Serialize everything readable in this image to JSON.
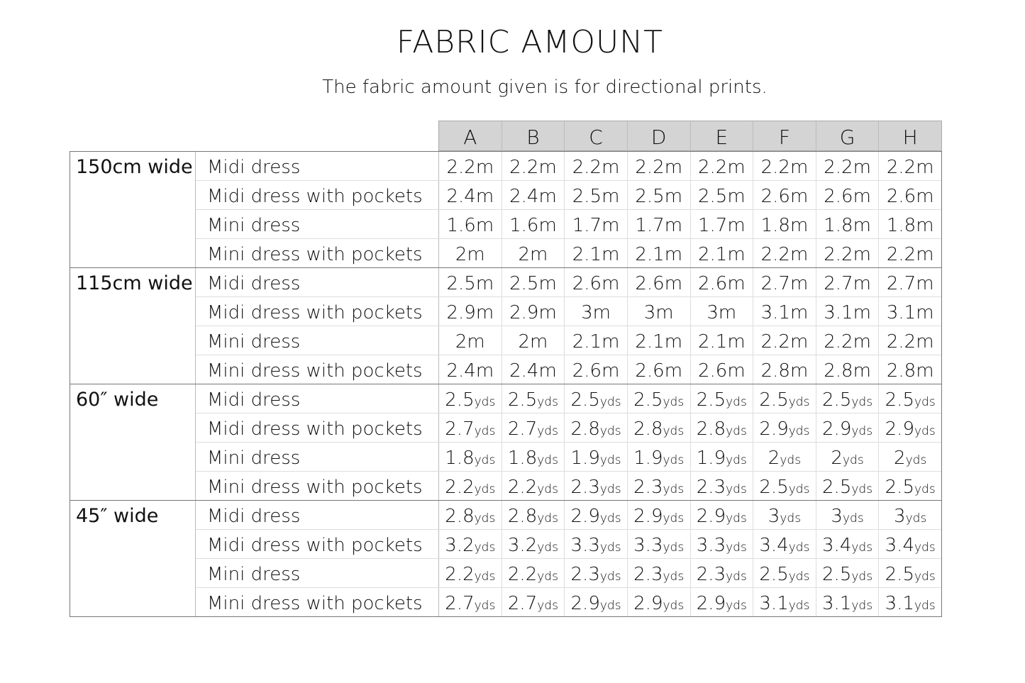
{
  "title": "FABRIC AMOUNT",
  "subtitle": "The fabric amount given is for directional prints.",
  "columns": [
    "A",
    "B",
    "C",
    "D",
    "E",
    "F",
    "G",
    "H"
  ],
  "groups": [
    {
      "label": "150cm wide",
      "unit": "m",
      "rows": [
        {
          "label": "Midi dress",
          "values": [
            "2.2",
            "2.2",
            "2.2",
            "2.2",
            "2.2",
            "2.2",
            "2.2",
            "2.2"
          ]
        },
        {
          "label": "Midi dress with pockets",
          "values": [
            "2.4",
            "2.4",
            "2.5",
            "2.5",
            "2.5",
            "2.6",
            "2.6",
            "2.6"
          ]
        },
        {
          "label": "Mini dress",
          "values": [
            "1.6",
            "1.6",
            "1.7",
            "1.7",
            "1.7",
            "1.8",
            "1.8",
            "1.8"
          ]
        },
        {
          "label": "Mini dress with pockets",
          "values": [
            "2",
            "2",
            "2.1",
            "2.1",
            "2.1",
            "2.2",
            "2.2",
            "2.2"
          ]
        }
      ]
    },
    {
      "label": "115cm wide",
      "unit": "m",
      "rows": [
        {
          "label": "Midi dress",
          "values": [
            "2.5",
            "2.5",
            "2.6",
            "2.6",
            "2.6",
            "2.7",
            "2.7",
            "2.7"
          ]
        },
        {
          "label": "Midi dress with pockets",
          "values": [
            "2.9",
            "2.9",
            "3",
            "3",
            "3",
            "3.1",
            "3.1",
            "3.1"
          ]
        },
        {
          "label": "Mini dress",
          "values": [
            "2",
            "2",
            "2.1",
            "2.1",
            "2.1",
            "2.2",
            "2.2",
            "2.2"
          ]
        },
        {
          "label": "Mini dress with pockets",
          "values": [
            "2.4",
            "2.4",
            "2.6",
            "2.6",
            "2.6",
            "2.8",
            "2.8",
            "2.8"
          ]
        }
      ]
    },
    {
      "label": "60″ wide",
      "unit": "yds",
      "rows": [
        {
          "label": "Midi dress",
          "values": [
            "2.5",
            "2.5",
            "2.5",
            "2.5",
            "2.5",
            "2.5",
            "2.5",
            "2.5"
          ]
        },
        {
          "label": "Midi dress with pockets",
          "values": [
            "2.7",
            "2.7",
            "2.8",
            "2.8",
            "2.8",
            "2.9",
            "2.9",
            "2.9"
          ]
        },
        {
          "label": "Mini dress",
          "values": [
            "1.8",
            "1.8",
            "1.9",
            "1.9",
            "1.9",
            "2",
            "2",
            "2"
          ]
        },
        {
          "label": "Mini dress with pockets",
          "values": [
            "2.2",
            "2.2",
            "2.3",
            "2.3",
            "2.3",
            "2.5",
            "2.5",
            "2.5"
          ]
        }
      ]
    },
    {
      "label": "45″ wide",
      "unit": "yds",
      "rows": [
        {
          "label": "Midi dress",
          "values": [
            "2.8",
            "2.8",
            "2.9",
            "2.9",
            "2.9",
            "3",
            "3",
            "3"
          ]
        },
        {
          "label": "Midi dress with pockets",
          "values": [
            "3.2",
            "3.2",
            "3.3",
            "3.3",
            "3.3",
            "3.4",
            "3.4",
            "3.4"
          ]
        },
        {
          "label": "Mini dress",
          "values": [
            "2.2",
            "2.2",
            "2.3",
            "2.3",
            "2.3",
            "2.5",
            "2.5",
            "2.5"
          ]
        },
        {
          "label": "Mini dress with pockets",
          "values": [
            "2.7",
            "2.7",
            "2.9",
            "2.9",
            "2.9",
            "3.1",
            "3.1",
            "3.1"
          ]
        }
      ]
    }
  ],
  "colors": {
    "header_bg": "#d4d4d4",
    "border": "#777777"
  }
}
